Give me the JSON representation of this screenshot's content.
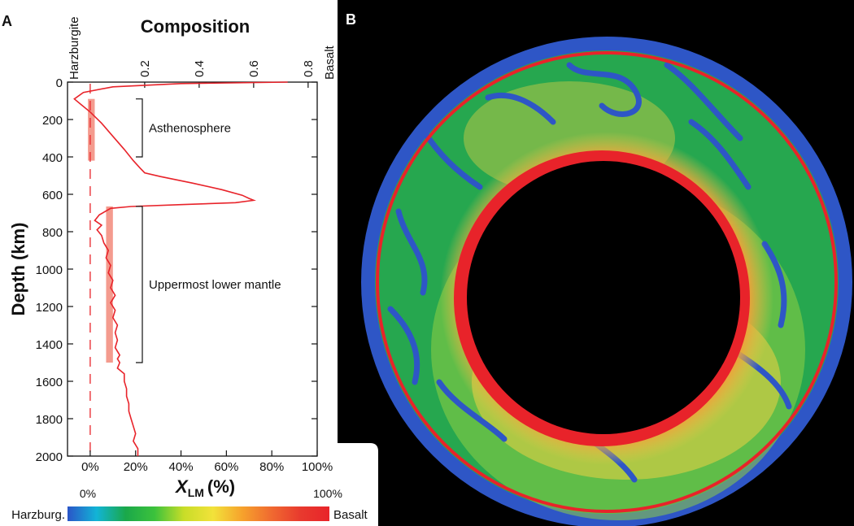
{
  "panels": {
    "a_label": "A",
    "b_label": "B"
  },
  "chart_data": {
    "type": "line",
    "title": "Composition",
    "top_axis": {
      "ticks": [
        "0.2",
        "0.4",
        "0.6",
        "0.8"
      ],
      "left_end_label": "Harzburgite",
      "right_end_label": "Basalt"
    },
    "ylabel": "Depth (km)",
    "ylim": [
      0,
      2000
    ],
    "y_ticks": [
      "0",
      "200",
      "400",
      "600",
      "800",
      "1000",
      "1200",
      "1400",
      "1600",
      "1800",
      "2000"
    ],
    "xlabel_main": "X",
    "xlabel_sub": "LM",
    "xlabel_unit": "(%)",
    "x_ticks": [
      "0%",
      "20%",
      "40%",
      "60%",
      "80%",
      "100%"
    ],
    "xlim_percent": [
      -10,
      100
    ],
    "series": [
      {
        "color": "#e8232a",
        "points": [
          [
            87,
            0
          ],
          [
            40,
            8
          ],
          [
            10,
            25
          ],
          [
            -3,
            55
          ],
          [
            -7,
            90
          ],
          [
            -4,
            120
          ],
          [
            0,
            160
          ],
          [
            5,
            220
          ],
          [
            10,
            290
          ],
          [
            15,
            360
          ],
          [
            19,
            420
          ],
          [
            22,
            460
          ],
          [
            24,
            485
          ],
          [
            31,
            505
          ],
          [
            45,
            540
          ],
          [
            58,
            575
          ],
          [
            67,
            605
          ],
          [
            70,
            622
          ],
          [
            72,
            632
          ],
          [
            64,
            645
          ],
          [
            40,
            655
          ],
          [
            18,
            665
          ],
          [
            9,
            675
          ],
          [
            4,
            710
          ],
          [
            2,
            740
          ],
          [
            5,
            765
          ],
          [
            3,
            790
          ],
          [
            5,
            820
          ],
          [
            6,
            860
          ],
          [
            8,
            900
          ],
          [
            7,
            940
          ],
          [
            9,
            980
          ],
          [
            8,
            1020
          ],
          [
            10,
            1060
          ],
          [
            9,
            1100
          ],
          [
            11,
            1140
          ],
          [
            9,
            1180
          ],
          [
            11,
            1220
          ],
          [
            10,
            1260
          ],
          [
            12,
            1300
          ],
          [
            11,
            1340
          ],
          [
            12,
            1380
          ],
          [
            11,
            1420
          ],
          [
            13,
            1460
          ],
          [
            12,
            1480
          ],
          [
            13,
            1500
          ],
          [
            12,
            1530
          ],
          [
            15,
            1560
          ],
          [
            15,
            1600
          ],
          [
            16,
            1640
          ],
          [
            16,
            1680
          ],
          [
            17,
            1720
          ],
          [
            17,
            1760
          ],
          [
            18,
            1800
          ],
          [
            19,
            1840
          ],
          [
            20,
            1880
          ],
          [
            19,
            1920
          ],
          [
            21,
            1960
          ],
          [
            21,
            2000
          ]
        ]
      }
    ],
    "reference_line_x_percent": 0,
    "shaded_bands": [
      {
        "x_percent": [
          -1,
          2
        ],
        "depth": [
          90,
          420
        ]
      },
      {
        "x_percent": [
          7,
          10
        ],
        "depth": [
          665,
          1500
        ]
      }
    ],
    "annotations": [
      {
        "text": "Asthenosphere",
        "bracket_depth": [
          90,
          400
        ]
      },
      {
        "text": "Uppermost lower mantle",
        "bracket_depth": [
          665,
          1500
        ]
      }
    ]
  },
  "colorbar": {
    "tick_left": "0%",
    "tick_right": "100%",
    "left_label": "Harzburg.",
    "right_label": "Basalt",
    "stops": [
      "#2b55c8",
      "#12b4d6",
      "#1aa84a",
      "#3cc23c",
      "#c8dd28",
      "#f2e23a",
      "#f6a22c",
      "#f06a30",
      "#e83a2e",
      "#e8242a"
    ]
  },
  "ring_colors": {
    "background": "#000000",
    "outer_rim": "#2e56c6",
    "green": "#26a74f",
    "yellow_green": "#8fcf43",
    "yellow": "#e9d34a",
    "red": "#e8232a",
    "inner_core": "#000000"
  }
}
